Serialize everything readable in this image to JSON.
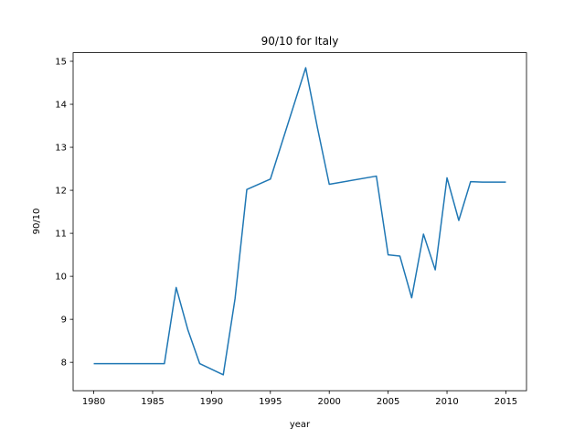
{
  "chart_data": {
    "type": "line",
    "title": "90/10 for Italy",
    "xlabel": "year",
    "ylabel": "90/10",
    "x": [
      1980,
      1986,
      1987,
      1988,
      1989,
      1991,
      1992,
      1993,
      1995,
      1998,
      1999,
      2000,
      2004,
      2005,
      2006,
      2007,
      2008,
      2009,
      2010,
      2011,
      2012,
      2013,
      2014,
      2015
    ],
    "series": [
      {
        "name": "90/10",
        "color": "#1f77b4",
        "values": [
          7.97,
          7.97,
          9.74,
          8.75,
          7.97,
          7.71,
          9.48,
          12.02,
          12.26,
          14.85,
          13.45,
          12.14,
          12.33,
          10.5,
          10.47,
          9.5,
          10.98,
          10.15,
          12.29,
          11.3,
          12.2,
          12.19,
          12.19,
          12.19
        ]
      }
    ],
    "xlim": [
      1978.25,
      2016.75
    ],
    "xticks": [
      1980,
      1985,
      1990,
      1995,
      2000,
      2005,
      2010,
      2015
    ],
    "ylim": [
      7.34,
      15.2
    ],
    "yticks": [
      8,
      9,
      10,
      11,
      12,
      13,
      14,
      15
    ]
  }
}
